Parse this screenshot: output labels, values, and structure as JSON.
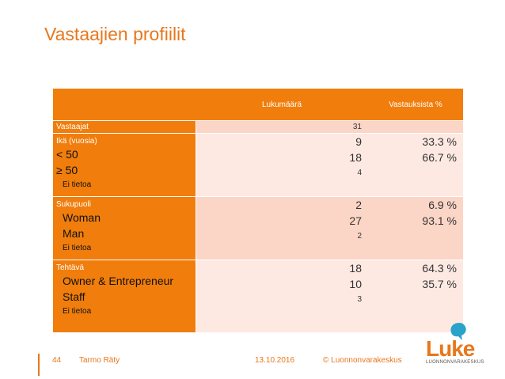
{
  "title": "Vastaajien profiilit",
  "table": {
    "headers": {
      "label": "",
      "count": "Lukumäärä",
      "percent": "Vastauksista %"
    },
    "total": {
      "label": "Vastaajat",
      "count": "31",
      "percent": ""
    },
    "groups": [
      {
        "title": "Ikä (vuosia)",
        "rows": [
          {
            "label": "< 50",
            "count": "9",
            "percent": "33.3 %"
          },
          {
            "label": "≥ 50",
            "count": "18",
            "percent": "66.7 %"
          }
        ],
        "unknown": {
          "label": "Ei tietoa",
          "count": "4"
        }
      },
      {
        "title": "Sukupuoli",
        "rows": [
          {
            "label": "Woman",
            "count": "2",
            "percent": "6.9 %"
          },
          {
            "label": "Man",
            "count": "27",
            "percent": "93.1 %"
          }
        ],
        "unknown": {
          "label": "Ei tietoa",
          "count": "2"
        }
      },
      {
        "title": "Tehtävä",
        "rows": [
          {
            "label": "Owner & Entrepreneur",
            "count": "18",
            "percent": "64.3 %"
          },
          {
            "label": "Staff",
            "count": "10",
            "percent": "35.7 %"
          }
        ],
        "unknown": {
          "label": "Ei tietoa",
          "count": "3"
        }
      }
    ]
  },
  "footer": {
    "page": "44",
    "author": "Tarmo Räty",
    "date": "13.10.2016",
    "copyright": "© Luonnonvarakeskus"
  },
  "logo": {
    "text": "Luke",
    "subtitle": "LUONNONVARAKESKUS"
  },
  "colors": {
    "accent": "#e8771c",
    "cell_orange": "#f07d0c",
    "cell_pink": "#fbd5c6",
    "cell_light": "#fde9e2"
  }
}
